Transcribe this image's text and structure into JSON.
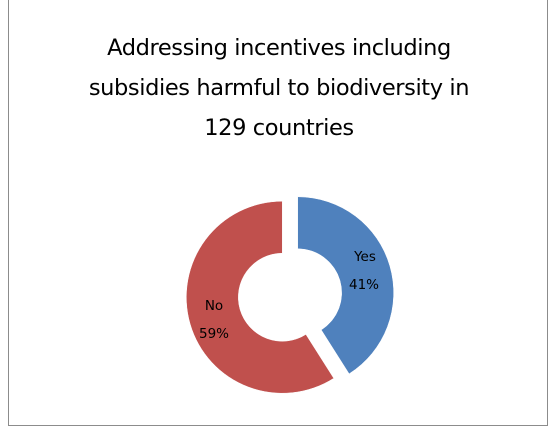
{
  "chart_data": {
    "type": "pie",
    "title": "Addressing incentives including subsidies harmful to biodiversity in 129 countries",
    "title_lines": [
      "Addressing incentives including",
      "subsidies harmful to biodiversity in",
      "129 countries"
    ],
    "slices": [
      {
        "name": "Yes",
        "value": 41,
        "label": "41%",
        "color": "#4f81bd"
      },
      {
        "name": "No",
        "value": 59,
        "label": "59%",
        "color": "#c0504d"
      }
    ],
    "hole": "donut",
    "exploded": true,
    "legend": "none"
  }
}
